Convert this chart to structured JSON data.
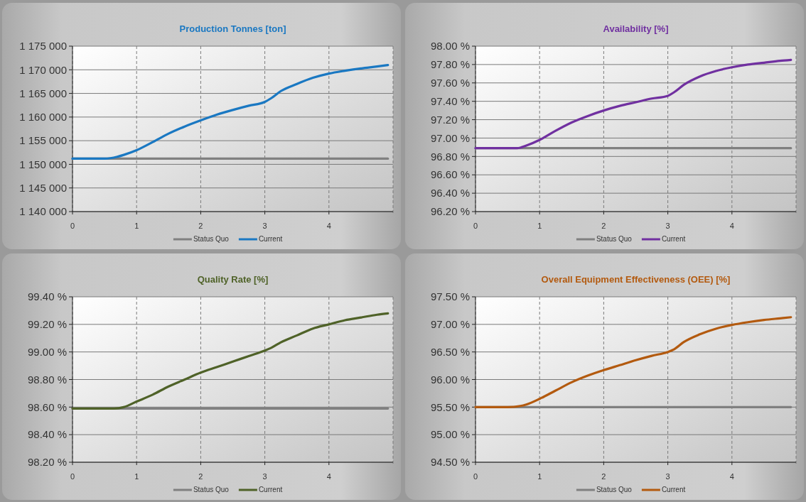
{
  "chart_data": [
    {
      "type": "line",
      "title": "Production Tonnes [ton]",
      "xlim": [
        0,
        5
      ],
      "xticks": [
        0,
        1,
        2,
        3,
        4
      ],
      "ylim": [
        1140000,
        1175000
      ],
      "yticks": [
        {
          "value": 1140000,
          "label": "1 140 000"
        },
        {
          "value": 1145000,
          "label": "1 145 000"
        },
        {
          "value": 1150000,
          "label": "1 150 000"
        },
        {
          "value": 1155000,
          "label": "1 155 000"
        },
        {
          "value": 1160000,
          "label": "1 160 000"
        },
        {
          "value": 1165000,
          "label": "1 165 000"
        },
        {
          "value": 1170000,
          "label": "1 170 000"
        },
        {
          "value": 1175000,
          "label": "1 175 000"
        }
      ],
      "grid": true,
      "legend": "bottom",
      "line_style": "solid",
      "marker": "none",
      "series": [
        {
          "name": "Status Quo",
          "color": "#808080",
          "x": [
            0,
            4.92
          ],
          "values": [
            1151200,
            1151200
          ]
        },
        {
          "name": "Current",
          "color": "#1a78c2",
          "x": [
            0,
            0.5,
            0.7,
            0.8,
            1,
            1.25,
            1.5,
            1.75,
            2,
            2.25,
            2.5,
            2.75,
            3,
            3.1,
            3.25,
            3.5,
            3.75,
            4,
            4.25,
            4.5,
            4.75,
            4.92
          ],
          "values": [
            1151200,
            1151200,
            1151600,
            1152000,
            1153000,
            1154700,
            1156500,
            1158000,
            1159300,
            1160500,
            1161500,
            1162400,
            1163200,
            1164000,
            1165500,
            1167000,
            1168300,
            1169200,
            1169800,
            1170300,
            1170700,
            1171000
          ]
        }
      ]
    },
    {
      "type": "line",
      "title": "Availability [%]",
      "xlim": [
        0,
        5
      ],
      "xticks": [
        0,
        1,
        2,
        3,
        4
      ],
      "ylim": [
        96.2,
        98
      ],
      "yticks": [
        {
          "value": 96.2,
          "label": "96.20 %"
        },
        {
          "value": 96.4,
          "label": "96.40 %"
        },
        {
          "value": 96.6,
          "label": "96.60 %"
        },
        {
          "value": 96.8,
          "label": "96.80 %"
        },
        {
          "value": 97,
          "label": "97.00 %"
        },
        {
          "value": 97.2,
          "label": "97.20 %"
        },
        {
          "value": 97.4,
          "label": "97.40 %"
        },
        {
          "value": 97.6,
          "label": "97.60 %"
        },
        {
          "value": 97.8,
          "label": "97.80 %"
        },
        {
          "value": 98,
          "label": "98.00 %"
        }
      ],
      "grid": true,
      "legend": "bottom",
      "line_style": "solid",
      "marker": "none",
      "series": [
        {
          "name": "Status Quo",
          "color": "#808080",
          "x": [
            0,
            4.92
          ],
          "values": [
            96.89,
            96.89
          ]
        },
        {
          "name": "Current",
          "color": "#7030a0",
          "x": [
            0,
            0.5,
            0.65,
            0.8,
            1,
            1.25,
            1.5,
            1.75,
            2,
            2.25,
            2.5,
            2.75,
            3,
            3.1,
            3.25,
            3.5,
            3.75,
            4,
            4.25,
            4.5,
            4.75,
            4.92
          ],
          "values": [
            96.89,
            96.89,
            96.89,
            96.92,
            96.98,
            97.08,
            97.17,
            97.24,
            97.3,
            97.35,
            97.39,
            97.43,
            97.46,
            97.5,
            97.58,
            97.67,
            97.73,
            97.77,
            97.8,
            97.82,
            97.84,
            97.85
          ]
        }
      ]
    },
    {
      "type": "line",
      "title": "Quality Rate [%]",
      "xlim": [
        0,
        5
      ],
      "xticks": [
        0,
        1,
        2,
        3,
        4
      ],
      "ylim": [
        98.2,
        99.4
      ],
      "yticks": [
        {
          "value": 98.2,
          "label": "98.20 %"
        },
        {
          "value": 98.4,
          "label": "98.40 %"
        },
        {
          "value": 98.6,
          "label": "98.60 %"
        },
        {
          "value": 98.8,
          "label": "98.80 %"
        },
        {
          "value": 99,
          "label": "99.00 %"
        },
        {
          "value": 99.2,
          "label": "99.20 %"
        },
        {
          "value": 99.4,
          "label": "99.40 %"
        }
      ],
      "grid": true,
      "legend": "bottom",
      "line_style": "solid",
      "marker": "none",
      "series": [
        {
          "name": "Status Quo",
          "color": "#808080",
          "x": [
            0,
            4.92
          ],
          "values": [
            98.59,
            98.59
          ]
        },
        {
          "name": "Current",
          "color": "#4f6228",
          "x": [
            0,
            0.5,
            0.65,
            0.8,
            1,
            1.25,
            1.5,
            1.75,
            2,
            2.25,
            2.5,
            2.75,
            3,
            3.1,
            3.25,
            3.5,
            3.75,
            4,
            4.25,
            4.5,
            4.75,
            4.92
          ],
          "values": [
            98.59,
            98.59,
            98.59,
            98.6,
            98.64,
            98.69,
            98.75,
            98.8,
            98.85,
            98.89,
            98.93,
            98.97,
            99.01,
            99.03,
            99.07,
            99.12,
            99.17,
            99.2,
            99.23,
            99.25,
            99.27,
            99.28
          ]
        }
      ]
    },
    {
      "type": "line",
      "title": "Overall Equipment Effectiveness (OEE) [%]",
      "xlim": [
        0,
        5
      ],
      "xticks": [
        0,
        1,
        2,
        3,
        4
      ],
      "ylim": [
        94.5,
        97.5
      ],
      "yticks": [
        {
          "value": 94.5,
          "label": "94.50 %"
        },
        {
          "value": 95,
          "label": "95.00 %"
        },
        {
          "value": 95.5,
          "label": "95.50 %"
        },
        {
          "value": 96,
          "label": "96.00 %"
        },
        {
          "value": 96.5,
          "label": "96.50 %"
        },
        {
          "value": 97,
          "label": "97.00 %"
        },
        {
          "value": 97.5,
          "label": "97.50 %"
        }
      ],
      "grid": true,
      "legend": "bottom",
      "line_style": "solid",
      "marker": "none",
      "series": [
        {
          "name": "Status Quo",
          "color": "#808080",
          "x": [
            0,
            4.92
          ],
          "values": [
            95.5,
            95.5
          ]
        },
        {
          "name": "Current",
          "color": "#b35a0f",
          "x": [
            0,
            0.5,
            0.7,
            0.8,
            1,
            1.25,
            1.5,
            1.75,
            2,
            2.25,
            2.5,
            2.75,
            3,
            3.1,
            3.25,
            3.5,
            3.75,
            4,
            4.25,
            4.5,
            4.75,
            4.92
          ],
          "values": [
            95.5,
            95.5,
            95.52,
            95.55,
            95.65,
            95.8,
            95.95,
            96.07,
            96.17,
            96.26,
            96.35,
            96.43,
            96.5,
            96.55,
            96.68,
            96.82,
            96.92,
            96.99,
            97.04,
            97.08,
            97.11,
            97.13
          ]
        }
      ]
    }
  ]
}
